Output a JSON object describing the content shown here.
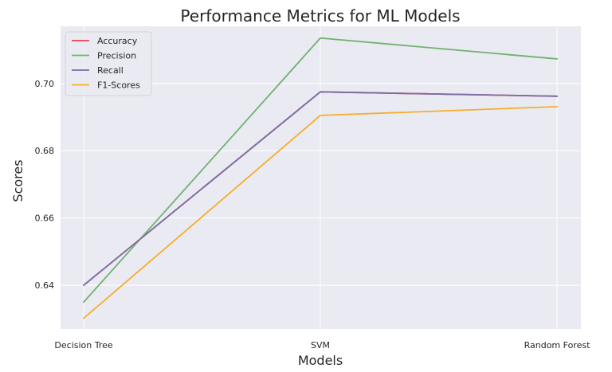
{
  "chart_data": {
    "type": "line",
    "title": "Performance Metrics for ML Models",
    "xlabel": "Models",
    "ylabel": "Scores",
    "categories": [
      "Decision Tree",
      "SVM",
      "Random Forest"
    ],
    "ylim": [
      0.627,
      0.717
    ],
    "yticks": [
      0.64,
      0.66,
      0.68,
      0.7
    ],
    "ytick_labels": [
      "0.64",
      "0.66",
      "0.68",
      "0.70"
    ],
    "grid": true,
    "legend_position": "top-left",
    "background": "#eaeaf2",
    "series": [
      {
        "name": "Accuracy",
        "color": "#e8434a",
        "values": [
          0.64,
          0.6975,
          0.6962
        ]
      },
      {
        "name": "Precision",
        "color": "#6fb26f",
        "values": [
          0.635,
          0.7135,
          0.7073
        ]
      },
      {
        "name": "Recall",
        "color": "#7a6ea3",
        "values": [
          0.64,
          0.6975,
          0.6962
        ]
      },
      {
        "name": "F1-Scores",
        "color": "#f6ae2d",
        "values": [
          0.6302,
          0.6905,
          0.6931
        ]
      }
    ]
  }
}
